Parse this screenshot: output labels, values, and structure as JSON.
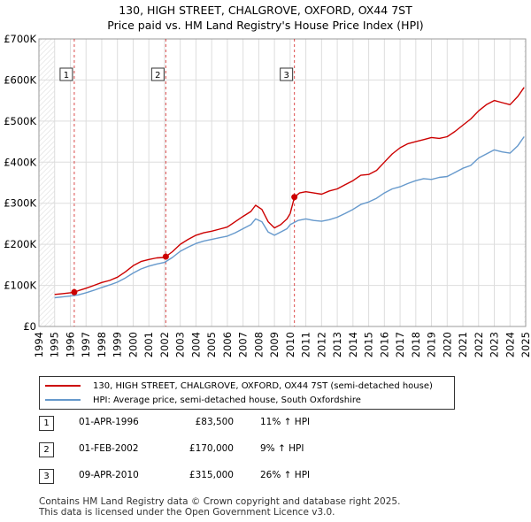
{
  "title": {
    "line1": "130, HIGH STREET, CHALGROVE, OXFORD, OX44 7ST",
    "line2": "Price paid vs. HM Land Registry's House Price Index (HPI)"
  },
  "chart_data": {
    "type": "line",
    "title": "Price paid vs. HM Land Registry's House Price Index (HPI)",
    "xlabel": "",
    "ylabel": "",
    "xlim": [
      1994,
      2025
    ],
    "ylim": [
      0,
      700000
    ],
    "y_ticks": [
      {
        "value": 0,
        "label": "£0"
      },
      {
        "value": 100000,
        "label": "£100K"
      },
      {
        "value": 200000,
        "label": "£200K"
      },
      {
        "value": 300000,
        "label": "£300K"
      },
      {
        "value": 400000,
        "label": "£400K"
      },
      {
        "value": 500000,
        "label": "£500K"
      },
      {
        "value": 600000,
        "label": "£600K"
      },
      {
        "value": 700000,
        "label": "£700K"
      }
    ],
    "x_ticks": [
      "1994",
      "1995",
      "1996",
      "1997",
      "1998",
      "1999",
      "2000",
      "2001",
      "2002",
      "2003",
      "2004",
      "2005",
      "2006",
      "2007",
      "2008",
      "2009",
      "2010",
      "2011",
      "2012",
      "2013",
      "2014",
      "2015",
      "2016",
      "2017",
      "2018",
      "2019",
      "2020",
      "2021",
      "2022",
      "2023",
      "2024",
      "2025"
    ],
    "grid": true,
    "series": [
      {
        "name": "130, HIGH STREET, CHALGROVE, OXFORD, OX44 7ST (semi-detached house)",
        "color": "#cc0000",
        "x": [
          1995.0,
          1995.5,
          1996.0,
          1996.25,
          1996.5,
          1997.0,
          1997.5,
          1998.0,
          1998.5,
          1999.0,
          1999.5,
          2000.0,
          2000.5,
          2001.0,
          2001.5,
          2002.0,
          2002.08,
          2002.5,
          2003.0,
          2003.5,
          2004.0,
          2004.5,
          2005.0,
          2005.5,
          2006.0,
          2006.5,
          2007.0,
          2007.5,
          2007.8,
          2008.2,
          2008.6,
          2009.0,
          2009.4,
          2009.8,
          2010.0,
          2010.27,
          2010.6,
          2011.0,
          2011.5,
          2012.0,
          2012.5,
          2013.0,
          2013.5,
          2014.0,
          2014.5,
          2015.0,
          2015.5,
          2016.0,
          2016.5,
          2017.0,
          2017.5,
          2018.0,
          2018.5,
          2019.0,
          2019.5,
          2020.0,
          2020.5,
          2021.0,
          2021.5,
          2022.0,
          2022.5,
          2023.0,
          2023.5,
          2024.0,
          2024.5,
          2024.9
        ],
        "values": [
          78000,
          80000,
          82000,
          83500,
          87000,
          93000,
          100000,
          107000,
          112000,
          120000,
          133000,
          148000,
          158000,
          163000,
          167000,
          168000,
          170000,
          182000,
          200000,
          212000,
          222000,
          228000,
          232000,
          237000,
          242000,
          255000,
          268000,
          280000,
          295000,
          285000,
          255000,
          240000,
          248000,
          262000,
          275000,
          315000,
          325000,
          328000,
          325000,
          322000,
          330000,
          335000,
          345000,
          355000,
          368000,
          370000,
          380000,
          400000,
          420000,
          435000,
          445000,
          450000,
          455000,
          460000,
          458000,
          462000,
          475000,
          490000,
          505000,
          525000,
          540000,
          550000,
          545000,
          540000,
          560000,
          582000
        ]
      },
      {
        "name": "HPI: Average price, semi-detached house, South Oxfordshire",
        "color": "#6699cc",
        "x": [
          1995.0,
          1995.5,
          1996.0,
          1996.5,
          1997.0,
          1997.5,
          1998.0,
          1998.5,
          1999.0,
          1999.5,
          2000.0,
          2000.5,
          2001.0,
          2001.5,
          2002.0,
          2002.5,
          2003.0,
          2003.5,
          2004.0,
          2004.5,
          2005.0,
          2005.5,
          2006.0,
          2006.5,
          2007.0,
          2007.5,
          2007.8,
          2008.2,
          2008.6,
          2009.0,
          2009.4,
          2009.8,
          2010.0,
          2010.5,
          2011.0,
          2011.5,
          2012.0,
          2012.5,
          2013.0,
          2013.5,
          2014.0,
          2014.5,
          2015.0,
          2015.5,
          2016.0,
          2016.5,
          2017.0,
          2017.5,
          2018.0,
          2018.5,
          2019.0,
          2019.5,
          2020.0,
          2020.5,
          2021.0,
          2021.5,
          2022.0,
          2022.5,
          2023.0,
          2023.5,
          2024.0,
          2024.5,
          2024.9
        ],
        "values": [
          70000,
          72000,
          74000,
          77000,
          82000,
          88000,
          95000,
          101000,
          108000,
          118000,
          130000,
          140000,
          147000,
          152000,
          156000,
          168000,
          183000,
          193000,
          202000,
          208000,
          212000,
          216000,
          220000,
          228000,
          238000,
          248000,
          262000,
          255000,
          230000,
          222000,
          230000,
          238000,
          248000,
          258000,
          262000,
          258000,
          256000,
          260000,
          266000,
          275000,
          285000,
          297000,
          303000,
          312000,
          325000,
          335000,
          340000,
          348000,
          355000,
          360000,
          358000,
          363000,
          365000,
          375000,
          385000,
          392000,
          410000,
          420000,
          430000,
          425000,
          422000,
          440000,
          462000
        ]
      }
    ],
    "sales": [
      {
        "label": "1",
        "x": 1996.25,
        "price": 83500
      },
      {
        "label": "2",
        "x": 2002.08,
        "price": 170000
      },
      {
        "label": "3",
        "x": 2010.27,
        "price": 315000
      }
    ]
  },
  "legend": {
    "property": "130, HIGH STREET, CHALGROVE, OXFORD, OX44 7ST (semi-detached house)",
    "hpi": "HPI: Average price, semi-detached house, South Oxfordshire"
  },
  "sales_table": [
    {
      "num": "1",
      "date": "01-APR-1996",
      "price": "£83,500",
      "hpi": "11% ↑ HPI"
    },
    {
      "num": "2",
      "date": "01-FEB-2002",
      "price": "£170,000",
      "hpi": "9% ↑ HPI"
    },
    {
      "num": "3",
      "date": "09-APR-2010",
      "price": "£315,000",
      "hpi": "26% ↑ HPI"
    }
  ],
  "footer": {
    "line1": "Contains HM Land Registry data © Crown copyright and database right 2025.",
    "line2": "This data is licensed under the Open Government Licence v3.0."
  },
  "colors": {
    "property": "#cc0000",
    "hpi": "#6699cc",
    "hatch": "#dddddd",
    "grid": "#dddddd"
  }
}
